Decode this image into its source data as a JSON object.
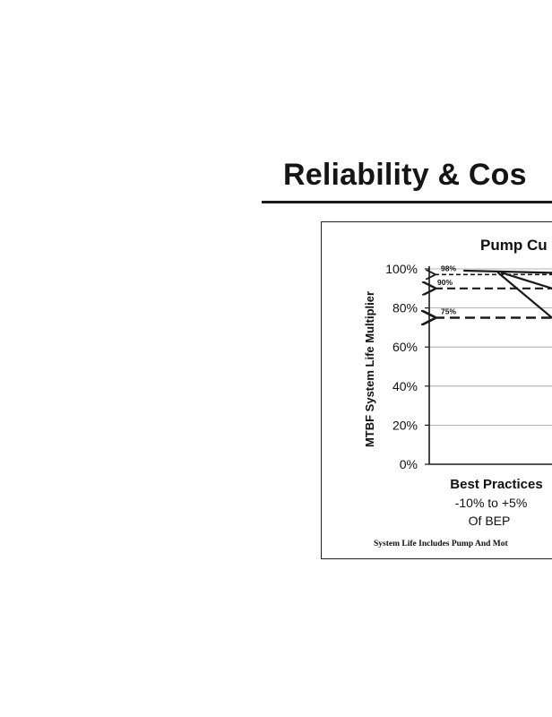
{
  "page": {
    "title": "Reliability & Cos"
  },
  "chart_data": {
    "type": "line",
    "title": "Pump Cu",
    "ylabel": "MTBF System Life Multiplier",
    "ylim": [
      0,
      100
    ],
    "y_ticks": [
      0,
      20,
      40,
      60,
      80,
      100
    ],
    "y_tick_labels": [
      "0%",
      "20%",
      "40%",
      "60%",
      "80%",
      "100%"
    ],
    "grid": true,
    "x_region_label": [
      "Best Practices",
      "-10% to +5%",
      "Of BEP"
    ],
    "footnote": "System Life Includes Pump And Mot",
    "series": [
      {
        "values": [
          100,
          98
        ]
      },
      {
        "values": [
          98,
          90
        ]
      },
      {
        "values": [
          98,
          75
        ]
      }
    ],
    "reference_levels": [
      {
        "label": "98%",
        "value": 98
      },
      {
        "label": "90%",
        "value": 90
      },
      {
        "label": "75%",
        "value": 75
      }
    ],
    "colors": {
      "ink": "#1a1a1a",
      "grid": "#9a9a9a"
    }
  }
}
